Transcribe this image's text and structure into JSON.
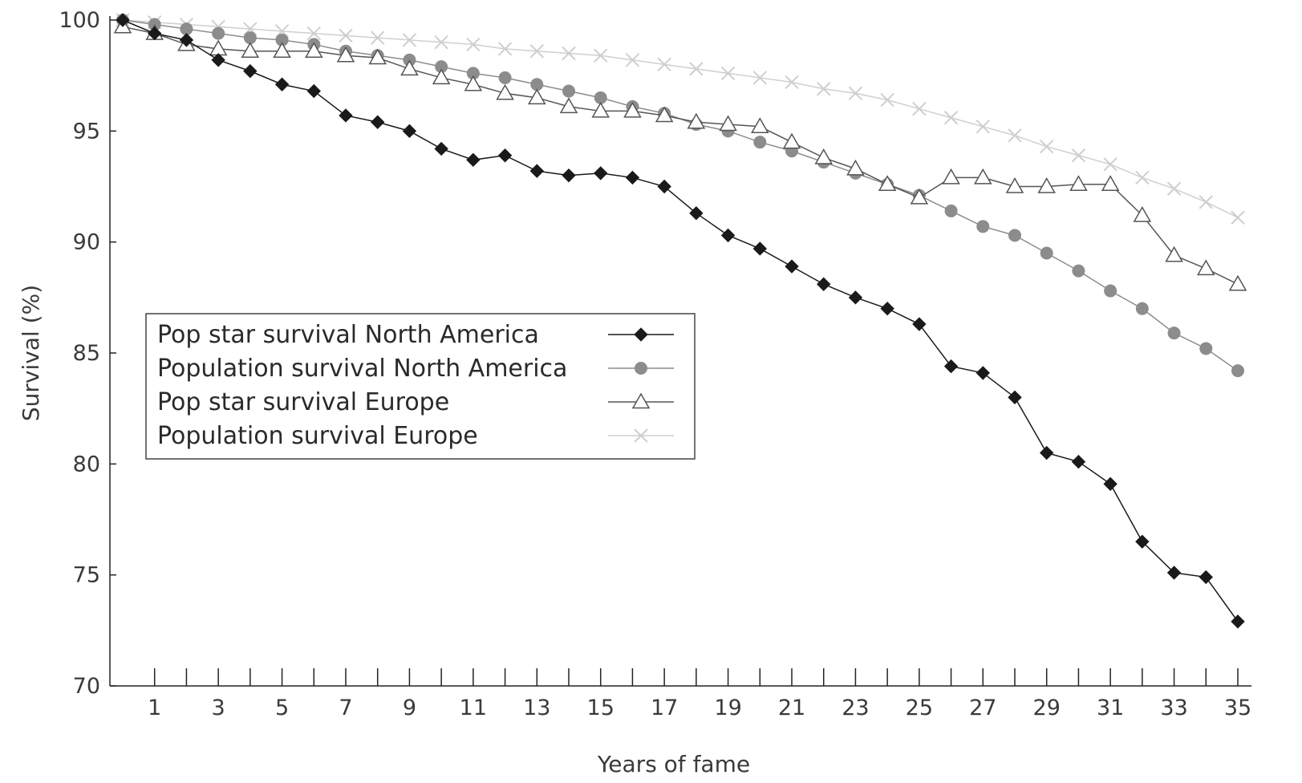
{
  "chart_data": {
    "type": "line",
    "title": "",
    "xlabel": "Years of fame",
    "ylabel": "Survival (%)",
    "xlim": [
      0,
      35
    ],
    "ylim": [
      70,
      100
    ],
    "x_tick_labels": [
      "1",
      "3",
      "5",
      "7",
      "9",
      "11",
      "13",
      "15",
      "17",
      "19",
      "21",
      "23",
      "25",
      "27",
      "29",
      "31",
      "33",
      "35"
    ],
    "y_tick_labels": [
      "100",
      "95",
      "90",
      "85",
      "80",
      "75",
      "70"
    ],
    "grid": false,
    "legend_position": "middle-left",
    "x": [
      0,
      1,
      2,
      3,
      4,
      5,
      6,
      7,
      8,
      9,
      10,
      11,
      12,
      13,
      14,
      15,
      16,
      17,
      18,
      19,
      20,
      21,
      22,
      23,
      24,
      25,
      26,
      27,
      28,
      29,
      30,
      31,
      32,
      33,
      34,
      35
    ],
    "series": [
      {
        "name": "Pop star survival North America",
        "marker": "diamond",
        "color": "#1a1a1a",
        "values": [
          100,
          99.4,
          99.1,
          98.2,
          97.7,
          97.1,
          96.8,
          95.7,
          95.4,
          95.0,
          94.2,
          93.7,
          93.9,
          93.2,
          93.0,
          93.1,
          92.9,
          92.5,
          91.3,
          90.3,
          89.7,
          88.9,
          88.1,
          87.5,
          87.0,
          86.3,
          84.4,
          84.1,
          83.0,
          80.5,
          80.1,
          79.1,
          76.5,
          75.1,
          74.9,
          72.9
        ]
      },
      {
        "name": "Population survival North America",
        "marker": "circle",
        "color": "#8c8c8c",
        "values": [
          100,
          99.8,
          99.6,
          99.4,
          99.2,
          99.1,
          98.9,
          98.6,
          98.4,
          98.2,
          97.9,
          97.6,
          97.4,
          97.1,
          96.8,
          96.5,
          96.1,
          95.8,
          95.3,
          95.0,
          94.5,
          94.1,
          93.6,
          93.1,
          92.6,
          92.1,
          91.4,
          90.7,
          90.3,
          89.5,
          88.7,
          87.8,
          87.0,
          85.9,
          85.2,
          84.2
        ]
      },
      {
        "name": "Pop star survival Europe",
        "marker": "triangle",
        "color": "#555555",
        "values": [
          99.7,
          99.4,
          98.9,
          98.7,
          98.6,
          98.6,
          98.6,
          98.4,
          98.3,
          97.8,
          97.4,
          97.1,
          96.7,
          96.5,
          96.1,
          95.9,
          95.9,
          95.7,
          95.4,
          95.3,
          95.2,
          94.5,
          93.8,
          93.3,
          92.6,
          92.0,
          92.9,
          92.9,
          92.5,
          92.5,
          92.6,
          92.6,
          91.2,
          89.4,
          88.8,
          88.1
        ]
      },
      {
        "name": "Population survival Europe",
        "marker": "x",
        "color": "#cfcfcf",
        "values": [
          100,
          99.9,
          99.8,
          99.7,
          99.6,
          99.5,
          99.4,
          99.3,
          99.2,
          99.1,
          99.0,
          98.9,
          98.7,
          98.6,
          98.5,
          98.4,
          98.2,
          98.0,
          97.8,
          97.6,
          97.4,
          97.2,
          96.9,
          96.7,
          96.4,
          96.0,
          95.6,
          95.2,
          94.8,
          94.3,
          93.9,
          93.5,
          92.9,
          92.4,
          91.8,
          91.1
        ]
      }
    ]
  }
}
